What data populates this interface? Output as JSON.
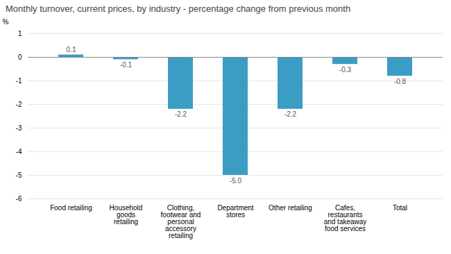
{
  "chart_data": {
    "type": "bar",
    "title": "Monthly turnover, current prices, by industry - percentage change from previous month",
    "categories": [
      "Food retailing",
      "Household\ngoods\nretailing",
      "Clothing,\nfootwear and\npersonal\naccessory\nretailing",
      "Department\nstores",
      "Other retailing",
      "Cafes,\nrestaurants\nand takeaway\nfood services",
      "Total"
    ],
    "values": [
      0.1,
      -0.1,
      -2.2,
      -5.0,
      -2.2,
      -0.3,
      -0.8
    ],
    "value_labels": [
      "0.1",
      "-0.1",
      "-2.2",
      "-5.0",
      "-2.2",
      "-0.3",
      "-0.8"
    ],
    "data_labels": true,
    "color": "#3b9cc4",
    "ylabel": "%",
    "ylim": [
      -6,
      1
    ],
    "yticks": [
      1,
      0,
      -1,
      -2,
      -3,
      -4,
      -5,
      -6
    ],
    "grid": true
  }
}
